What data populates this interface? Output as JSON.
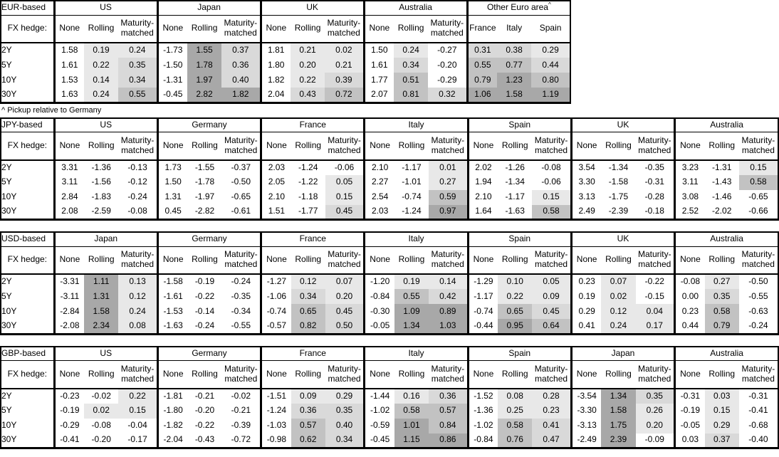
{
  "footnote": "^ Pickup relative to Germany",
  "labels": {
    "fx_hedge": "FX hedge:",
    "hedge_columns": [
      "None",
      "Rolling",
      "Maturity-matched"
    ],
    "tenors": [
      "2Y",
      "5Y",
      "10Y",
      "30Y"
    ]
  },
  "shading": {
    "note": "positive values get gray fill, darker = larger; non-positive = white",
    "bins": [
      {
        "max": 0.3,
        "color": "#e8e8e8"
      },
      {
        "max": 0.5,
        "color": "#d9d9d9"
      },
      {
        "max": 0.85,
        "color": "#c2c2c2"
      },
      {
        "max": 9.99,
        "color": "#a8a8a8"
      }
    ]
  },
  "chart_data": [
    {
      "type": "table",
      "base": "EUR-based",
      "groups": [
        {
          "name": "US",
          "rows": [
            [
              "1.58",
              "0.19",
              "0.24"
            ],
            [
              "1.61",
              "0.22",
              "0.35"
            ],
            [
              "1.53",
              "0.14",
              "0.34"
            ],
            [
              "1.63",
              "0.24",
              "0.55"
            ]
          ]
        },
        {
          "name": "Japan",
          "rows": [
            [
              "-1.73",
              "1.55",
              "0.37"
            ],
            [
              "-1.50",
              "1.78",
              "0.36"
            ],
            [
              "-1.31",
              "1.97",
              "0.40"
            ],
            [
              "-0.45",
              "2.82",
              "1.82"
            ]
          ]
        },
        {
          "name": "UK",
          "rows": [
            [
              "1.81",
              "0.21",
              "0.02"
            ],
            [
              "1.80",
              "0.20",
              "0.21"
            ],
            [
              "1.82",
              "0.22",
              "0.39"
            ],
            [
              "2.04",
              "0.43",
              "0.72"
            ]
          ]
        },
        {
          "name": "Australia",
          "rows": [
            [
              "1.50",
              "0.24",
              "-0.27"
            ],
            [
              "1.61",
              "0.34",
              "-0.20"
            ],
            [
              "1.77",
              "0.51",
              "-0.29"
            ],
            [
              "2.07",
              "0.81",
              "0.32"
            ]
          ]
        },
        {
          "name": "Other Euro area",
          "sup": "^",
          "shade_all": true,
          "columns": [
            "France",
            "Italy",
            "Spain"
          ],
          "rows": [
            [
              "0.31",
              "0.38",
              "0.29"
            ],
            [
              "0.55",
              "0.77",
              "0.44"
            ],
            [
              "0.79",
              "1.23",
              "0.80"
            ],
            [
              "1.06",
              "1.58",
              "1.19"
            ]
          ]
        }
      ]
    },
    {
      "type": "table",
      "base": "JPY-based",
      "groups": [
        {
          "name": "US",
          "rows": [
            [
              "3.31",
              "-1.36",
              "-0.13"
            ],
            [
              "3.11",
              "-1.56",
              "-0.12"
            ],
            [
              "2.84",
              "-1.83",
              "-0.24"
            ],
            [
              "2.08",
              "-2.59",
              "-0.08"
            ]
          ]
        },
        {
          "name": "Germany",
          "rows": [
            [
              "1.73",
              "-1.55",
              "-0.37"
            ],
            [
              "1.50",
              "-1.78",
              "-0.50"
            ],
            [
              "1.31",
              "-1.97",
              "-0.65"
            ],
            [
              "0.45",
              "-2.82",
              "-0.61"
            ]
          ]
        },
        {
          "name": "France",
          "rows": [
            [
              "2.03",
              "-1.24",
              "-0.06"
            ],
            [
              "2.05",
              "-1.22",
              "0.05"
            ],
            [
              "2.10",
              "-1.18",
              "0.15"
            ],
            [
              "1.51",
              "-1.77",
              "0.45"
            ]
          ]
        },
        {
          "name": "Italy",
          "rows": [
            [
              "2.10",
              "-1.17",
              "0.01"
            ],
            [
              "2.27",
              "-1.01",
              "0.27"
            ],
            [
              "2.54",
              "-0.74",
              "0.59"
            ],
            [
              "2.03",
              "-1.24",
              "0.97"
            ]
          ]
        },
        {
          "name": "Spain",
          "rows": [
            [
              "2.02",
              "-1.26",
              "-0.08"
            ],
            [
              "1.94",
              "-1.34",
              "-0.06"
            ],
            [
              "2.10",
              "-1.17",
              "0.15"
            ],
            [
              "1.64",
              "-1.63",
              "0.58"
            ]
          ]
        },
        {
          "name": "UK",
          "rows": [
            [
              "3.54",
              "-1.34",
              "-0.35"
            ],
            [
              "3.30",
              "-1.58",
              "-0.31"
            ],
            [
              "3.13",
              "-1.75",
              "-0.28"
            ],
            [
              "2.49",
              "-2.39",
              "-0.18"
            ]
          ]
        },
        {
          "name": "Australia",
          "rows": [
            [
              "3.23",
              "-1.31",
              "0.15"
            ],
            [
              "3.11",
              "-1.43",
              "0.58"
            ],
            [
              "3.08",
              "-1.46",
              "-0.65"
            ],
            [
              "2.52",
              "-2.02",
              "-0.66"
            ]
          ]
        }
      ]
    },
    {
      "type": "table",
      "base": "USD-based",
      "groups": [
        {
          "name": "Japan",
          "rows": [
            [
              "-3.31",
              "1.11",
              "0.13"
            ],
            [
              "-3.11",
              "1.31",
              "0.12"
            ],
            [
              "-2.84",
              "1.58",
              "0.24"
            ],
            [
              "-2.08",
              "2.34",
              "0.08"
            ]
          ]
        },
        {
          "name": "Germany",
          "rows": [
            [
              "-1.58",
              "-0.19",
              "-0.24"
            ],
            [
              "-1.61",
              "-0.22",
              "-0.35"
            ],
            [
              "-1.53",
              "-0.14",
              "-0.34"
            ],
            [
              "-1.63",
              "-0.24",
              "-0.55"
            ]
          ]
        },
        {
          "name": "France",
          "rows": [
            [
              "-1.27",
              "0.12",
              "0.07"
            ],
            [
              "-1.06",
              "0.34",
              "0.20"
            ],
            [
              "-0.74",
              "0.65",
              "0.45"
            ],
            [
              "-0.57",
              "0.82",
              "0.50"
            ]
          ]
        },
        {
          "name": "Italy",
          "rows": [
            [
              "-1.20",
              "0.19",
              "0.14"
            ],
            [
              "-0.84",
              "0.55",
              "0.42"
            ],
            [
              "-0.30",
              "1.09",
              "0.89"
            ],
            [
              "-0.05",
              "1.34",
              "1.03"
            ]
          ]
        },
        {
          "name": "Spain",
          "rows": [
            [
              "-1.29",
              "0.10",
              "0.05"
            ],
            [
              "-1.17",
              "0.22",
              "0.09"
            ],
            [
              "-0.74",
              "0.65",
              "0.45"
            ],
            [
              "-0.44",
              "0.95",
              "0.64"
            ]
          ]
        },
        {
          "name": "UK",
          "rows": [
            [
              "0.23",
              "0.07",
              "-0.22"
            ],
            [
              "0.19",
              "0.02",
              "-0.15"
            ],
            [
              "0.29",
              "0.12",
              "0.04"
            ],
            [
              "0.41",
              "0.24",
              "0.17"
            ]
          ]
        },
        {
          "name": "Australia",
          "rows": [
            [
              "-0.08",
              "0.27",
              "-0.50"
            ],
            [
              "0.00",
              "0.35",
              "-0.55"
            ],
            [
              "0.23",
              "0.58",
              "-0.63"
            ],
            [
              "0.44",
              "0.79",
              "-0.24"
            ]
          ]
        }
      ]
    },
    {
      "type": "table",
      "base": "GBP-based",
      "groups": [
        {
          "name": "US",
          "rows": [
            [
              "-0.23",
              "-0.02",
              "0.22"
            ],
            [
              "-0.19",
              "0.02",
              "0.15"
            ],
            [
              "-0.29",
              "-0.08",
              "-0.04"
            ],
            [
              "-0.41",
              "-0.20",
              "-0.17"
            ]
          ]
        },
        {
          "name": "Germany",
          "rows": [
            [
              "-1.81",
              "-0.21",
              "-0.02"
            ],
            [
              "-1.80",
              "-0.20",
              "-0.21"
            ],
            [
              "-1.82",
              "-0.22",
              "-0.39"
            ],
            [
              "-2.04",
              "-0.43",
              "-0.72"
            ]
          ]
        },
        {
          "name": "France",
          "rows": [
            [
              "-1.51",
              "0.09",
              "0.29"
            ],
            [
              "-1.24",
              "0.36",
              "0.35"
            ],
            [
              "-1.03",
              "0.57",
              "0.40"
            ],
            [
              "-0.98",
              "0.62",
              "0.34"
            ]
          ]
        },
        {
          "name": "Italy",
          "rows": [
            [
              "-1.44",
              "0.16",
              "0.36"
            ],
            [
              "-1.02",
              "0.58",
              "0.57"
            ],
            [
              "-0.59",
              "1.01",
              "0.84"
            ],
            [
              "-0.45",
              "1.15",
              "0.86"
            ]
          ]
        },
        {
          "name": "Spain",
          "rows": [
            [
              "-1.52",
              "0.08",
              "0.28"
            ],
            [
              "-1.36",
              "0.25",
              "0.23"
            ],
            [
              "-1.02",
              "0.58",
              "0.41"
            ],
            [
              "-0.84",
              "0.76",
              "0.47"
            ]
          ]
        },
        {
          "name": "Japan",
          "rows": [
            [
              "-3.54",
              "1.34",
              "0.35"
            ],
            [
              "-3.30",
              "1.58",
              "0.26"
            ],
            [
              "-3.13",
              "1.75",
              "0.20"
            ],
            [
              "-2.49",
              "2.39",
              "-0.09"
            ]
          ]
        },
        {
          "name": "Australia",
          "rows": [
            [
              "-0.31",
              "0.03",
              "-0.31"
            ],
            [
              "-0.19",
              "0.15",
              "-0.41"
            ],
            [
              "-0.05",
              "0.29",
              "-0.68"
            ],
            [
              "0.03",
              "0.37",
              "-0.40"
            ]
          ]
        }
      ]
    }
  ]
}
